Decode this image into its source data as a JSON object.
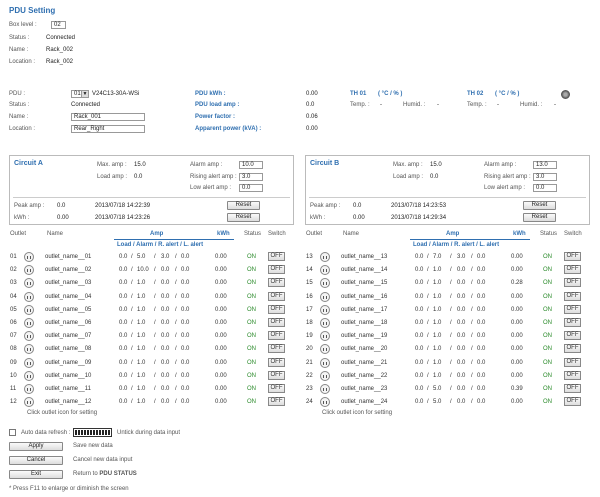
{
  "page_title": "PDU  Setting",
  "box": {
    "level_label": "Box level :",
    "level_value": "02",
    "status_label": "Status :",
    "status_value": "Connected",
    "name_label": "Name :",
    "name_value": "Rack_002",
    "location_label": "Location :",
    "location_value": "Rack_002"
  },
  "pdu": {
    "pdu_label": "PDU :",
    "pdu_select": "01",
    "pdu_model": "V24C13-30A-WSi",
    "status_label": "Status :",
    "status_value": "Connected",
    "name_label": "Name :",
    "name_value": "Rack_001",
    "location_label": "Location :",
    "location_value": "Rear_Right",
    "kwh_label": "PDU kWh :",
    "kwh_value": "0.00",
    "load_amp_label": "PDU load amp :",
    "load_amp_value": "0.0",
    "power_factor_label": "Power factor :",
    "power_factor_value": "0.06",
    "apparent_power_label": "Apparent power (kVA) :",
    "apparent_power_value": "0.00",
    "th01_label": "TH  01",
    "th01_units": "( °C  /  % )",
    "th02_label": "TH  02",
    "th02_units": "( °C  /  % )",
    "temp_label": "Temp. :",
    "temp_value": "-",
    "humid_label": "Humid. :",
    "humid_value": "-"
  },
  "circuit_a": {
    "title": "Circuit A",
    "max_amp_label": "Max. amp :",
    "max_amp_value": "15.0",
    "load_amp_label": "Load amp :",
    "load_amp_value": "0.0",
    "alarm_amp_label": "Alarm amp :",
    "alarm_amp_value": "10.0",
    "rising_alert_label": "Rising alert amp :",
    "rising_alert_value": "3.0",
    "low_alert_label": "Low alert amp :",
    "low_alert_value": "0.0",
    "peak_amp_label": "Peak amp :",
    "peak_amp_value": "0.0",
    "peak_amp_time": "2013/07/18 14:22:39",
    "kwh_label": "kWh :",
    "kwh_value": "0.00",
    "kwh_time": "2013/07/18 14:23:26",
    "reset_label": "Reset"
  },
  "circuit_b": {
    "title": "Circuit B",
    "max_amp_label": "Max. amp :",
    "max_amp_value": "15.0",
    "load_amp_label": "Load amp :",
    "load_amp_value": "0.0",
    "alarm_amp_label": "Alarm amp :",
    "alarm_amp_value": "13.0",
    "rising_alert_label": "Rising alert amp :",
    "rising_alert_value": "3.0",
    "low_alert_label": "Low alert amp :",
    "low_alert_value": "0.0",
    "peak_amp_label": "Peak amp :",
    "peak_amp_value": "0.0",
    "peak_amp_time": "2013/07/18 14:23:53",
    "kwh_label": "kWh :",
    "kwh_value": "0.00",
    "kwh_time": "2013/07/18 14:29:34",
    "reset_label": "Reset"
  },
  "table_headers": {
    "outlet": "Outlet",
    "name": "Name",
    "amp": "Amp",
    "amp_sub": "Load / Alarm / R. alert / L. alert",
    "kwh": "kWh",
    "status": "Status",
    "switch": "Switch"
  },
  "outlets_left": [
    {
      "num": "01",
      "name": "outlet_name__01",
      "load": "0.0",
      "alarm": "5.0",
      "ralert": "3.0",
      "lalert": "0.0",
      "kwh": "0.00",
      "status": "ON",
      "switch": "OFF"
    },
    {
      "num": "02",
      "name": "outlet_name__02",
      "load": "0.0",
      "alarm": "10.0",
      "ralert": "0.0",
      "lalert": "0.0",
      "kwh": "0.00",
      "status": "ON",
      "switch": "OFF"
    },
    {
      "num": "03",
      "name": "outlet_name__03",
      "load": "0.0",
      "alarm": "1.0",
      "ralert": "0.0",
      "lalert": "0.0",
      "kwh": "0.00",
      "status": "ON",
      "switch": "OFF"
    },
    {
      "num": "04",
      "name": "outlet_name__04",
      "load": "0.0",
      "alarm": "1.0",
      "ralert": "0.0",
      "lalert": "0.0",
      "kwh": "0.00",
      "status": "ON",
      "switch": "OFF"
    },
    {
      "num": "05",
      "name": "outlet_name__05",
      "load": "0.0",
      "alarm": "1.0",
      "ralert": "0.0",
      "lalert": "0.0",
      "kwh": "0.00",
      "status": "ON",
      "switch": "OFF"
    },
    {
      "num": "06",
      "name": "outlet_name__06",
      "load": "0.0",
      "alarm": "1.0",
      "ralert": "0.0",
      "lalert": "0.0",
      "kwh": "0.00",
      "status": "ON",
      "switch": "OFF"
    },
    {
      "num": "07",
      "name": "outlet_name__07",
      "load": "0.0",
      "alarm": "1.0",
      "ralert": "0.0",
      "lalert": "0.0",
      "kwh": "0.00",
      "status": "ON",
      "switch": "OFF"
    },
    {
      "num": "08",
      "name": "outlet_name__08",
      "load": "0.0",
      "alarm": "1.0",
      "ralert": "0.0",
      "lalert": "0.0",
      "kwh": "0.00",
      "status": "ON",
      "switch": "OFF"
    },
    {
      "num": "09",
      "name": "outlet_name__09",
      "load": "0.0",
      "alarm": "1.0",
      "ralert": "0.0",
      "lalert": "0.0",
      "kwh": "0.00",
      "status": "ON",
      "switch": "OFF"
    },
    {
      "num": "10",
      "name": "outlet_name__10",
      "load": "0.0",
      "alarm": "1.0",
      "ralert": "0.0",
      "lalert": "0.0",
      "kwh": "0.00",
      "status": "ON",
      "switch": "OFF"
    },
    {
      "num": "11",
      "name": "outlet_name__11",
      "load": "0.0",
      "alarm": "1.0",
      "ralert": "0.0",
      "lalert": "0.0",
      "kwh": "0.00",
      "status": "ON",
      "switch": "OFF"
    },
    {
      "num": "12",
      "name": "outlet_name__12",
      "load": "0.0",
      "alarm": "1.0",
      "ralert": "0.0",
      "lalert": "0.0",
      "kwh": "0.00",
      "status": "ON",
      "switch": "OFF"
    }
  ],
  "outlets_right": [
    {
      "num": "13",
      "name": "outlet_name__13",
      "load": "0.0",
      "alarm": "7.0",
      "ralert": "3.0",
      "lalert": "0.0",
      "kwh": "0.00",
      "status": "ON",
      "switch": "OFF"
    },
    {
      "num": "14",
      "name": "outlet_name__14",
      "load": "0.0",
      "alarm": "1.0",
      "ralert": "0.0",
      "lalert": "0.0",
      "kwh": "0.00",
      "status": "ON",
      "switch": "OFF"
    },
    {
      "num": "15",
      "name": "outlet_name__15",
      "load": "0.0",
      "alarm": "1.0",
      "ralert": "0.0",
      "lalert": "0.0",
      "kwh": "0.28",
      "status": "ON",
      "switch": "OFF"
    },
    {
      "num": "16",
      "name": "outlet_name__16",
      "load": "0.0",
      "alarm": "1.0",
      "ralert": "0.0",
      "lalert": "0.0",
      "kwh": "0.00",
      "status": "ON",
      "switch": "OFF"
    },
    {
      "num": "17",
      "name": "outlet_name__17",
      "load": "0.0",
      "alarm": "1.0",
      "ralert": "0.0",
      "lalert": "0.0",
      "kwh": "0.00",
      "status": "ON",
      "switch": "OFF"
    },
    {
      "num": "18",
      "name": "outlet_name__18",
      "load": "0.0",
      "alarm": "1.0",
      "ralert": "0.0",
      "lalert": "0.0",
      "kwh": "0.00",
      "status": "ON",
      "switch": "OFF"
    },
    {
      "num": "19",
      "name": "outlet_name__19",
      "load": "0.0",
      "alarm": "1.0",
      "ralert": "0.0",
      "lalert": "0.0",
      "kwh": "0.00",
      "status": "ON",
      "switch": "OFF"
    },
    {
      "num": "20",
      "name": "outlet_name__20",
      "load": "0.0",
      "alarm": "1.0",
      "ralert": "0.0",
      "lalert": "0.0",
      "kwh": "0.00",
      "status": "ON",
      "switch": "OFF"
    },
    {
      "num": "21",
      "name": "outlet_name__21",
      "load": "0.0",
      "alarm": "1.0",
      "ralert": "0.0",
      "lalert": "0.0",
      "kwh": "0.00",
      "status": "ON",
      "switch": "OFF"
    },
    {
      "num": "22",
      "name": "outlet_name__22",
      "load": "0.0",
      "alarm": "1.0",
      "ralert": "0.0",
      "lalert": "0.0",
      "kwh": "0.00",
      "status": "ON",
      "switch": "OFF"
    },
    {
      "num": "23",
      "name": "outlet_name__23",
      "load": "0.0",
      "alarm": "5.0",
      "ralert": "0.0",
      "lalert": "0.0",
      "kwh": "0.39",
      "status": "ON",
      "switch": "OFF"
    },
    {
      "num": "24",
      "name": "outlet_name__24",
      "load": "0.0",
      "alarm": "5.0",
      "ralert": "0.0",
      "lalert": "0.0",
      "kwh": "0.00",
      "status": "ON",
      "switch": "OFF"
    }
  ],
  "click_hint": "Click outlet icon for setting",
  "footer": {
    "auto_refresh_label": "Auto data refresh :",
    "untick_hint": "Untick during data input",
    "apply_label": "Apply",
    "apply_desc": "Save new data",
    "cancel_label": "Cancel",
    "cancel_desc": "Cancel new data input",
    "exit_label": "Exit",
    "exit_desc_prefix": "Return to ",
    "exit_desc_strong": "PDU STATUS",
    "f11_note": "* Press F11 to enlarge or diminish the screen"
  },
  "icons": {
    "outlet": "outlet-socket-icon",
    "gear": "gear-icon",
    "dropdown": "chevron-down-icon"
  },
  "colors": {
    "accent": "#2f6fb0",
    "on_status": "#2a8a2a"
  }
}
